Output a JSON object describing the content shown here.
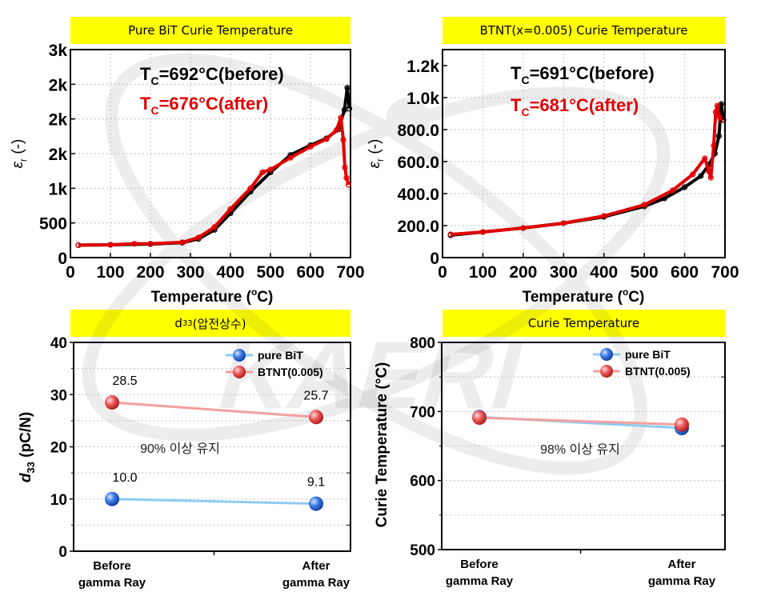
{
  "chart_data": [
    {
      "type": "scatter",
      "title": "Pure BiT Curie Temperature",
      "xlabel": "Temperature",
      "xlabel_unit_sup": "o",
      "xlabel_unit": "C",
      "ylabel_sym": "ε",
      "ylabel_sub": "r",
      "ylabel_unit": " (-)",
      "xlim": [
        0,
        700
      ],
      "ylim": [
        0,
        3000
      ],
      "xticks": [
        0,
        100,
        200,
        300,
        400,
        500,
        600,
        700
      ],
      "yticks": [
        0,
        500,
        1000,
        1500,
        2000,
        2500,
        3000
      ],
      "ytick_labels": [
        "0",
        "500",
        "1k",
        "2k",
        "2k",
        "2k",
        "3k"
      ],
      "annotations": [
        {
          "main": "T",
          "sub": "C",
          "rest": "=692°C(before)",
          "color": "#000000"
        },
        {
          "main": "T",
          "sub": "C",
          "rest": "=676°C(after)",
          "color": "#e00000"
        }
      ],
      "series": [
        {
          "name": "before",
          "color": "#000000",
          "x": [
            20,
            100,
            200,
            280,
            320,
            360,
            400,
            450,
            500,
            550,
            600,
            640,
            670,
            685,
            692,
            697
          ],
          "y": [
            180,
            185,
            195,
            215,
            270,
            400,
            640,
            950,
            1230,
            1480,
            1620,
            1720,
            1850,
            2130,
            2450,
            2150
          ]
        },
        {
          "name": "after",
          "color": "#e00000",
          "x": [
            20,
            100,
            160,
            200,
            280,
            320,
            360,
            400,
            450,
            480,
            500,
            550,
            600,
            640,
            665,
            676,
            682,
            686,
            690,
            695
          ],
          "y": [
            180,
            185,
            200,
            200,
            220,
            290,
            440,
            700,
            1000,
            1230,
            1270,
            1440,
            1600,
            1710,
            1840,
            2020,
            1700,
            1300,
            1150,
            1050
          ]
        }
      ]
    },
    {
      "type": "scatter",
      "title": "BTNT(x=0.005) Curie Temperature",
      "xlabel": "Temperature",
      "xlabel_unit_sup": "o",
      "xlabel_unit": "C",
      "ylabel_sym": "ε",
      "ylabel_sub": "r",
      "ylabel_unit": " (-)",
      "xlim": [
        0,
        700
      ],
      "ylim": [
        0,
        1300
      ],
      "xticks": [
        0,
        100,
        200,
        300,
        400,
        500,
        600,
        700
      ],
      "yticks": [
        0,
        200,
        400,
        600,
        800,
        1000,
        1200
      ],
      "ytick_labels": [
        "0",
        "200.0",
        "400.0",
        "600.0",
        "800.0",
        "1.0k",
        "1.2k"
      ],
      "annotations": [
        {
          "main": "T",
          "sub": "C",
          "rest": "=691°C(before)",
          "color": "#000000"
        },
        {
          "main": "T",
          "sub": "C",
          "rest": "=681°C(after)",
          "color": "#e00000"
        }
      ],
      "series": [
        {
          "name": "before",
          "color": "#000000",
          "x": [
            20,
            100,
            200,
            300,
            400,
            500,
            550,
            600,
            640,
            660,
            675,
            685,
            691,
            696
          ],
          "y": [
            140,
            160,
            185,
            215,
            255,
            320,
            370,
            440,
            510,
            580,
            650,
            760,
            960,
            860
          ]
        },
        {
          "name": "after",
          "color": "#e00000",
          "x": [
            20,
            100,
            200,
            300,
            400,
            500,
            570,
            620,
            650,
            660,
            665,
            672,
            677,
            681,
            686,
            690
          ],
          "y": [
            145,
            160,
            185,
            215,
            260,
            330,
            420,
            520,
            620,
            540,
            500,
            700,
            910,
            950,
            880,
            860
          ]
        }
      ]
    },
    {
      "type": "line",
      "title_main": "d",
      "title_sub": "33",
      "title_rest": "(압전상수)",
      "categories": [
        [
          "Before",
          "gamma Ray"
        ],
        [
          "After",
          "gamma Ray"
        ]
      ],
      "ylabel_main": "d",
      "ylabel_sub": "33",
      "ylabel_unit": " (pC/N)",
      "ylim": [
        0,
        40
      ],
      "yticks": [
        0,
        10,
        20,
        30,
        40
      ],
      "legend_position": "top-right",
      "annotation": "90% 이상 유지",
      "series": [
        {
          "name": "pure BiT",
          "line_color": "#8ecbf0",
          "marker_color": "#1f5fd0",
          "values": [
            10.0,
            9.1
          ],
          "labels": [
            "10.0",
            "9.1"
          ]
        },
        {
          "name": "BTNT(0.005)",
          "line_color": "#f4a0a0",
          "marker_color": "#e04848",
          "values": [
            28.5,
            25.7
          ],
          "labels": [
            "28.5",
            "25.7"
          ]
        }
      ]
    },
    {
      "type": "line",
      "title": "Curie Temperature",
      "categories": [
        [
          "Before",
          "gamma Ray"
        ],
        [
          "After",
          "gamma Ray"
        ]
      ],
      "ylabel": "Curie Temperature ",
      "ylabel_unit": "(°C)",
      "ylim": [
        500,
        800
      ],
      "yticks": [
        500,
        600,
        700,
        800
      ],
      "legend_position": "top-right",
      "annotation": "98% 이상 유지",
      "series": [
        {
          "name": "pure BiT",
          "line_color": "#8ecbf0",
          "marker_color": "#1f5fd0",
          "values": [
            692,
            676
          ]
        },
        {
          "name": "BTNT(0.005)",
          "line_color": "#f4a0a0",
          "marker_color": "#e04848",
          "values": [
            691,
            681
          ]
        }
      ]
    }
  ],
  "watermark": "KAERI"
}
